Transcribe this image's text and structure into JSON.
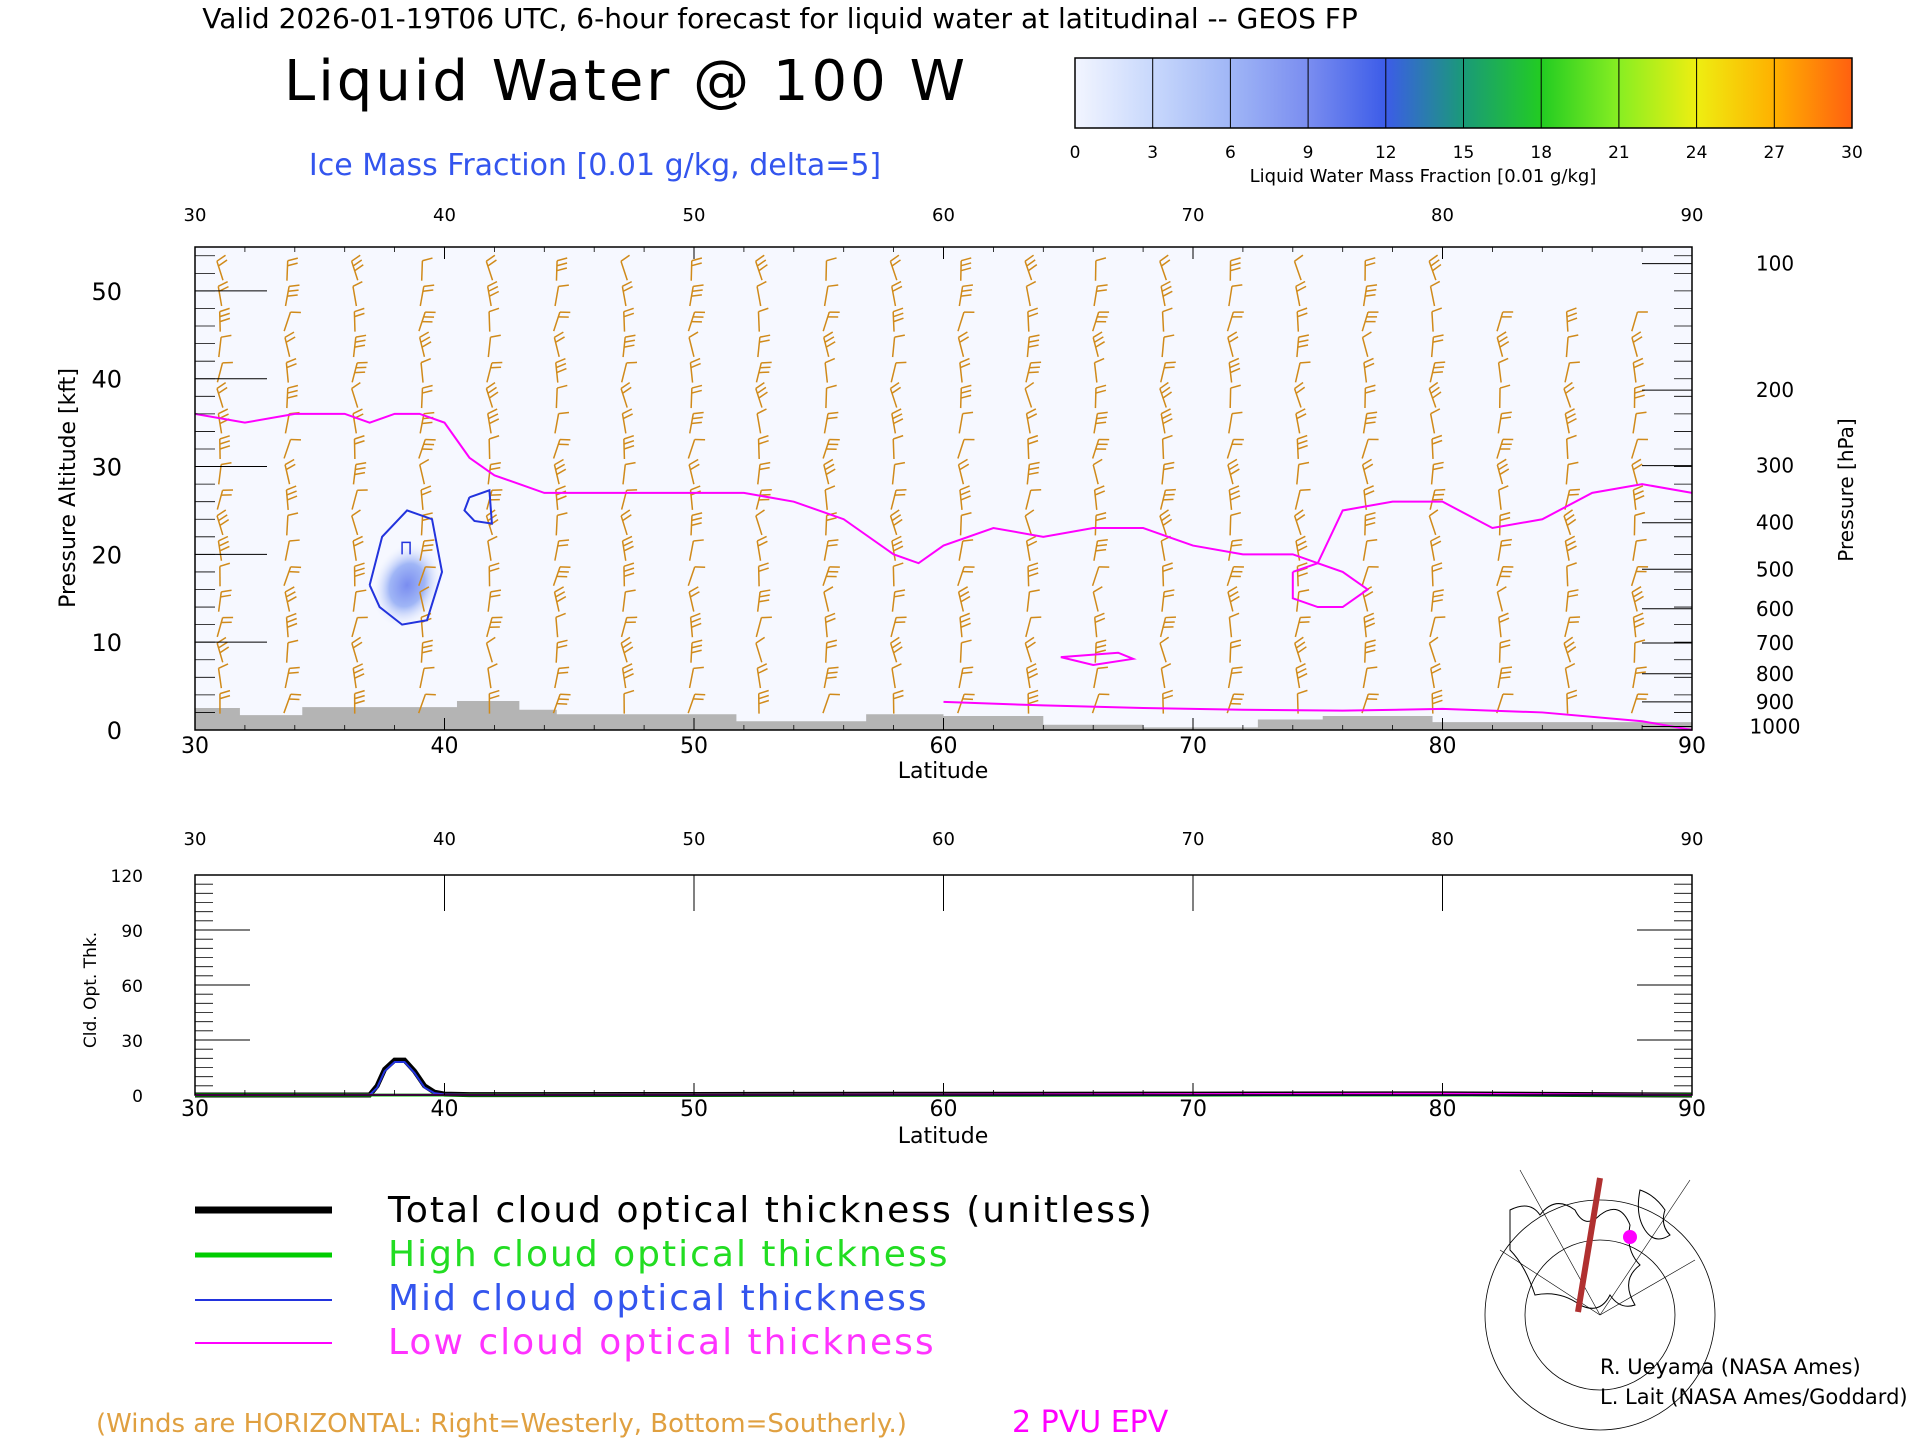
{
  "header": {
    "valid_line": "Valid 2026-01-19T06 UTC, 6-hour forecast for liquid water at latitudinal -- GEOS FP",
    "title": "Liquid Water @ 100 W",
    "subtitle": "Ice Mass Fraction [0.01 g/kg, delta=5]"
  },
  "colorbar": {
    "label": "Liquid Water Mass Fraction [0.01 g/kg]",
    "ticks": [
      "0",
      "3",
      "6",
      "9",
      "12",
      "15",
      "18",
      "21",
      "24",
      "27",
      "30"
    ],
    "colors": [
      "#f2f5ff",
      "#c8d8fc",
      "#a0b6f6",
      "#7a8df0",
      "#3c5ce8",
      "#1a9a78",
      "#22cc22",
      "#88ee22",
      "#eeee11",
      "#ffb000",
      "#ff6010"
    ]
  },
  "chart_data": [
    {
      "type": "line",
      "title": "Liquid Water @ 100 W",
      "xlabel": "Latitude",
      "ylabel": "Pressure Altitude [kft]",
      "ylabel_right": "Pressure [hPa]",
      "xlim": [
        30,
        90
      ],
      "ylim": [
        0,
        55
      ],
      "x_ticks": [
        "30",
        "40",
        "50",
        "60",
        "70",
        "80",
        "90"
      ],
      "y_ticks": [
        "0",
        "10",
        "20",
        "30",
        "40",
        "50"
      ],
      "pressure_ticks": [
        "100",
        "200",
        "300",
        "400",
        "500",
        "600",
        "700",
        "800",
        "900",
        "1000"
      ],
      "pressure_tick_kft": [
        53.1,
        38.7,
        30.1,
        23.6,
        18.3,
        13.8,
        9.9,
        6.4,
        3.2,
        0.4
      ],
      "series": [
        {
          "name": "2 PVU EPV",
          "color": "#ff00ff",
          "x": [
            30,
            32,
            34,
            36,
            37,
            38,
            39,
            40,
            41,
            42,
            43,
            44,
            46,
            48,
            50,
            52,
            54,
            56,
            58,
            59,
            60,
            62,
            64,
            66,
            68,
            69,
            70,
            72,
            74,
            75,
            76,
            78,
            80,
            82,
            84,
            86,
            88,
            90
          ],
          "y": [
            36,
            35,
            36,
            36,
            35,
            36,
            36,
            35,
            31,
            29,
            28,
            27,
            27,
            27,
            27,
            27,
            26,
            24,
            20,
            19,
            21,
            23,
            22,
            23,
            23,
            22,
            21,
            20,
            20,
            19,
            25,
            26,
            26,
            23,
            24,
            27,
            28,
            27
          ]
        },
        {
          "name": "EPV closed contour",
          "color": "#ff00ff",
          "x": [
            74,
            75,
            76,
            77,
            76,
            75,
            74,
            74
          ],
          "y": [
            18,
            19,
            18,
            16,
            14,
            14,
            15,
            18
          ]
        },
        {
          "name": "EPV low contour",
          "color": "#ff00ff",
          "x": [
            60,
            64,
            68,
            72,
            76,
            80,
            84,
            88,
            90
          ],
          "y": [
            3.2,
            2.8,
            2.5,
            2.3,
            2.2,
            2.4,
            2.0,
            1.0,
            0
          ]
        },
        {
          "name": "EPV low contour 2",
          "color": "#ff00ff",
          "x": [
            64.7,
            67,
            67.6,
            66,
            64.7
          ],
          "y": [
            8.3,
            8.8,
            8.1,
            7.4,
            8.3
          ]
        },
        {
          "name": "Ice mass fraction contour",
          "color": "#2233dd",
          "x": [
            37,
            37.5,
            38.5,
            39.5,
            39.9,
            39.3,
            38.3,
            37.4,
            37
          ],
          "y": [
            16.5,
            22,
            25,
            24,
            18,
            12.5,
            12,
            14,
            16.5
          ]
        },
        {
          "name": "Ice mass fraction contour 2",
          "color": "#2233dd",
          "x": [
            41,
            41.8,
            41.9,
            41.2,
            40.8,
            41
          ],
          "y": [
            26.5,
            27.3,
            23.5,
            23.8,
            25,
            26.5
          ]
        }
      ],
      "liquid_water_blob": {
        "center_lat": 38.5,
        "center_kft": 16.5,
        "peak": 5
      }
    },
    {
      "type": "line",
      "xlabel": "Latitude",
      "ylabel": "Cld. Opt. Thk.",
      "xlim": [
        30,
        90
      ],
      "ylim": [
        0,
        120
      ],
      "x_ticks": [
        "30",
        "40",
        "50",
        "60",
        "70",
        "80",
        "90"
      ],
      "y_ticks": [
        "0",
        "30",
        "60",
        "90",
        "120"
      ],
      "series": [
        {
          "name": "Total cloud optical thickness (unitless)",
          "color": "#000000",
          "x": [
            30,
            37,
            37.3,
            37.6,
            38,
            38.4,
            38.8,
            39.2,
            39.6,
            40,
            41,
            50,
            60,
            70,
            80,
            90
          ],
          "y": [
            0,
            0,
            5,
            14,
            19,
            19,
            13,
            5,
            1.5,
            0.5,
            0.2,
            0.3,
            0.4,
            0.5,
            0.6,
            0
          ]
        },
        {
          "name": "High cloud optical thickness",
          "color": "#00cc00",
          "x": [
            30,
            50,
            70,
            90
          ],
          "y": [
            0,
            0,
            0,
            0
          ]
        },
        {
          "name": "Mid cloud optical thickness",
          "color": "#2233dd",
          "x": [
            30,
            37,
            37.3,
            37.6,
            38,
            38.4,
            38.8,
            39.2,
            39.6,
            40,
            41,
            90
          ],
          "y": [
            0,
            0,
            4,
            13,
            18,
            18,
            12,
            4,
            1,
            0.3,
            0,
            0
          ]
        },
        {
          "name": "Low cloud optical thickness",
          "color": "#ff00ff",
          "x": [
            30,
            60,
            70,
            80,
            90
          ],
          "y": [
            0,
            0.2,
            0.5,
            0.7,
            0
          ]
        }
      ]
    }
  ],
  "legend": {
    "total": "Total cloud optical thickness (unitless)",
    "high": "High cloud optical thickness",
    "mid": "Mid cloud optical thickness",
    "low": "Low cloud optical thickness"
  },
  "footer": {
    "winds_note": "(Winds are HORIZONTAL: Right=Westerly, Bottom=Southerly.)",
    "epv_label": "2 PVU EPV",
    "credit1": "R. Ueyama (NASA Ames)",
    "credit2": "L. Lait (NASA Ames/Goddard)"
  },
  "colors": {
    "epv": "#ff00ff",
    "ice": "#2233dd",
    "wind_barbs": "#d08a1a",
    "terrain": "#b4b4b4",
    "title_text": "#000000",
    "subtitle_text": "#3355ee"
  },
  "map_icon": "north-america-polar-map-with-cross-section-line"
}
